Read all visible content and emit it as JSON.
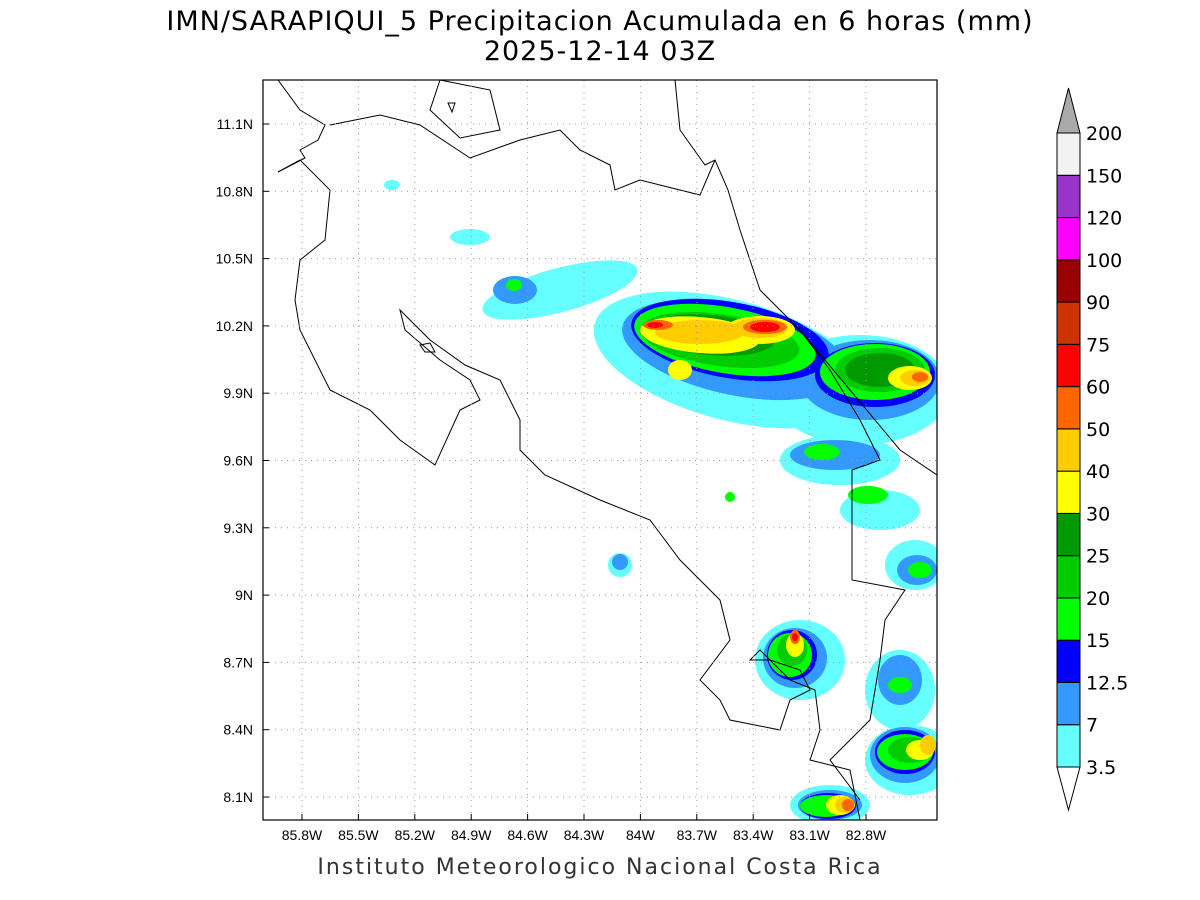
{
  "header": {
    "title": "IMN/SARAPIQUI_5 Precipitacion Acumulada en 6 horas (mm)",
    "subtitle": "2025-12-14 03Z"
  },
  "footer": {
    "credit": "Instituto Meteorologico Nacional Costa Rica"
  },
  "map": {
    "lon_labels": [
      "85.8W",
      "85.5W",
      "85.2W",
      "84.9W",
      "84.6W",
      "84.3W",
      "84W",
      "83.7W",
      "83.4W",
      "83.1W",
      "82.8W"
    ],
    "lat_labels": [
      "11.1N",
      "10.8N",
      "10.5N",
      "10.2N",
      "9.9N",
      "9.6N",
      "9.3N",
      "9N",
      "8.7N",
      "8.4N",
      "8.1N"
    ]
  },
  "colorbar": {
    "labels": [
      "3.5",
      "7",
      "12.5",
      "15",
      "20",
      "25",
      "30",
      "40",
      "50",
      "60",
      "75",
      "90",
      "100",
      "120",
      "150",
      "200"
    ],
    "colors": [
      "#66ffff",
      "#3399ff",
      "#0000ff",
      "#00ff00",
      "#00cc00",
      "#009900",
      "#ffff00",
      "#ffcc00",
      "#ff6600",
      "#ff0000",
      "#cc3300",
      "#990000",
      "#ff00ff",
      "#9933cc",
      "#f2f2f2"
    ],
    "under_color": "#ffffff",
    "over_color": "#aaaaaa"
  }
}
